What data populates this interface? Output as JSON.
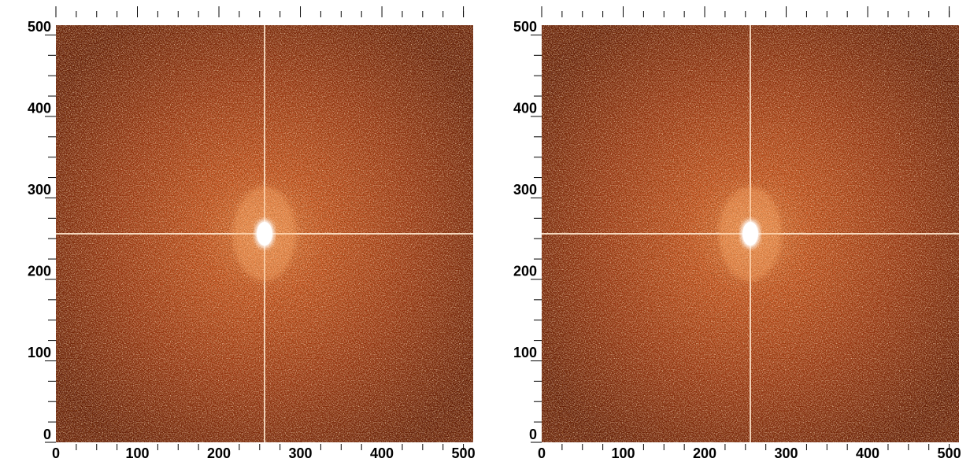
{
  "chart_data": [
    {
      "type": "heatmap",
      "xlim": [
        0,
        512
      ],
      "ylim": [
        0,
        512
      ],
      "xticks": [
        0,
        100,
        200,
        300,
        400,
        500
      ],
      "yticks": [
        0,
        100,
        200,
        300,
        400,
        500
      ],
      "xminorticks": [
        25,
        50,
        75,
        125,
        150,
        175,
        225,
        250,
        275,
        325,
        350,
        375,
        425,
        450,
        475,
        500
      ],
      "yminorticks": [
        25,
        50,
        75,
        125,
        150,
        175,
        225,
        250,
        275,
        325,
        350,
        375,
        425,
        450,
        475
      ]
    },
    {
      "type": "heatmap",
      "xlim": [
        0,
        512
      ],
      "ylim": [
        0,
        512
      ],
      "xticks": [
        0,
        100,
        200,
        300,
        400,
        500
      ],
      "yticks": [
        0,
        100,
        200,
        300,
        400,
        500
      ],
      "xminorticks": [
        25,
        50,
        75,
        125,
        150,
        175,
        225,
        250,
        275,
        325,
        350,
        375,
        425,
        450,
        475,
        500
      ],
      "yminorticks": [
        25,
        50,
        75,
        125,
        150,
        175,
        225,
        250,
        275,
        325,
        350,
        375,
        425,
        450,
        475
      ]
    }
  ]
}
